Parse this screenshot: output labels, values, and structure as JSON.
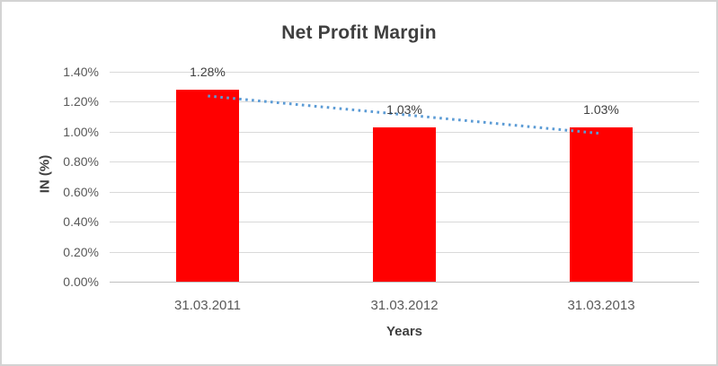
{
  "chart_data": {
    "type": "bar",
    "title": "Net Profit Margin",
    "xlabel": "Years",
    "ylabel": "IN (%)",
    "categories": [
      "31.03.2011",
      "31.03.2012",
      "31.03.2013"
    ],
    "values": [
      1.28,
      1.03,
      1.03
    ],
    "data_labels": [
      "1.28%",
      "1.03%",
      "1.03%"
    ],
    "ylim": [
      0,
      1.4
    ],
    "ytick_step": 0.2,
    "ytick_labels": [
      "0.00%",
      "0.20%",
      "0.40%",
      "0.60%",
      "0.80%",
      "1.00%",
      "1.20%",
      "1.40%"
    ],
    "grid": true,
    "legend": "none",
    "bar_color": "#FF0000",
    "trendline": {
      "type": "linear",
      "style": "dotted",
      "color": "#5B9BD5",
      "endpoints_values": [
        1.2383,
        0.9883
      ]
    },
    "colors": {
      "title_text": "#3F3F3F",
      "axis_title_text": "#3F3F3F",
      "tick_text": "#595959",
      "data_label_text": "#404040",
      "gridline": "#D9D9D9",
      "axis_line": "#BFBFBF",
      "background": "#FFFFFF",
      "border": "#D3D3D3"
    }
  }
}
